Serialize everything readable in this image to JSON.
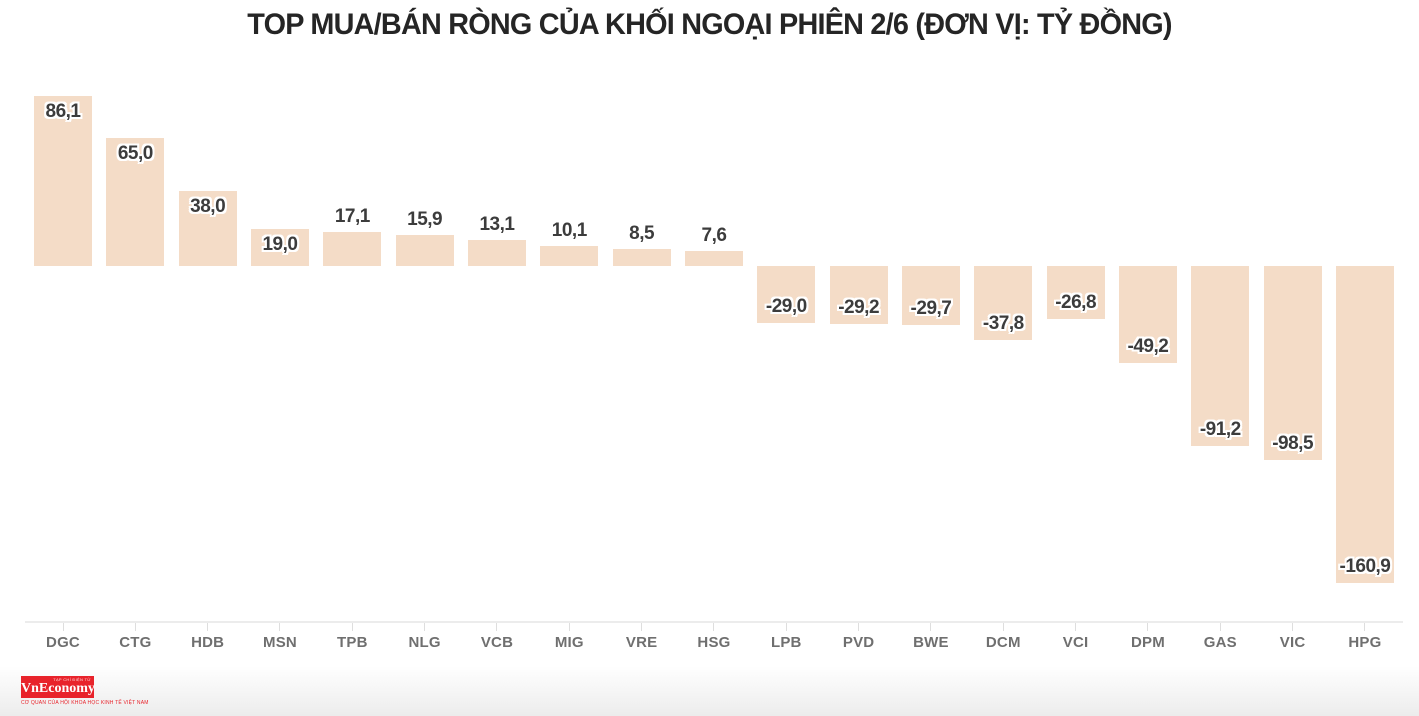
{
  "title": "TOP MUA/BÁN RÒNG CỦA KHỐI NGOẠI PHIÊN 2/6 (ĐƠN VỊ: TỶ ĐỒNG)",
  "chart_data": {
    "type": "bar",
    "title": "TOP MUA/BÁN RÒNG CỦA KHỐI NGOẠI PHIÊN 2/6 (ĐƠN VỊ: TỶ ĐỒNG)",
    "unit": "tỷ đồng",
    "categories": [
      "DGC",
      "CTG",
      "HDB",
      "MSN",
      "TPB",
      "NLG",
      "VCB",
      "MIG",
      "VRE",
      "HSG",
      "LPB",
      "PVD",
      "BWE",
      "DCM",
      "VCI",
      "DPM",
      "GAS",
      "VIC",
      "HPG"
    ],
    "values": [
      86.1,
      65.0,
      38.0,
      19.0,
      17.1,
      15.9,
      13.1,
      10.1,
      8.5,
      7.6,
      -29.0,
      -29.2,
      -29.7,
      -37.8,
      -26.8,
      -49.2,
      -91.2,
      -98.5,
      -160.9
    ],
    "value_labels": [
      "86,1",
      "65,0",
      "38,0",
      "19,0",
      "17,1",
      "15,9",
      "13,1",
      "10,1",
      "8,5",
      "7,6",
      "-29,0",
      "-29,2",
      "-29,7",
      "-37,8",
      "-26,8",
      "-49,2",
      "-91,2",
      "-98,5",
      "-160,9"
    ],
    "xlabel": "",
    "ylabel": "",
    "ylim": [
      -170,
      95
    ],
    "grid": false,
    "legend": "none",
    "bar_color": "#f4dcc7",
    "value_label_color": "#3c3c3c",
    "axis_label_color": "#6f6f6f",
    "axis_line_color": "#ececec"
  },
  "footer": {
    "logo_text": "VnEconomy",
    "logo_top_text": "TẠP CHÍ ĐIỆN TỬ",
    "logo_tagline": "CƠ QUAN CỦA HỘI KHOA HỌC KINH TẾ VIỆT NAM",
    "logo_bg": "#e8232b"
  }
}
